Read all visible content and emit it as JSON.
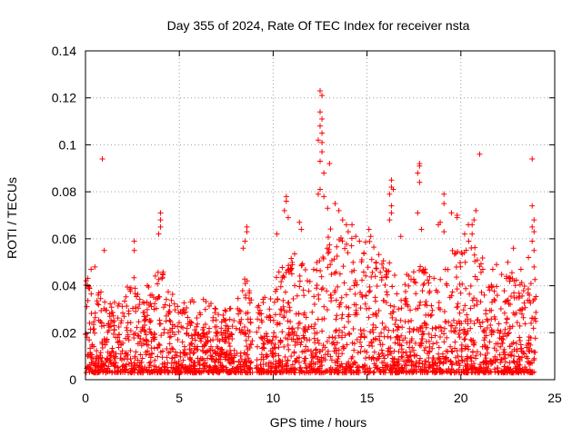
{
  "chart_data": {
    "type": "scatter",
    "title": "Day 355 of 2024, Rate Of TEC Index for receiver nsta",
    "xlabel": "GPS time / hours",
    "ylabel": "ROTI / TECUs",
    "xlim": [
      0,
      25
    ],
    "ylim": [
      0,
      0.14
    ],
    "grid": true,
    "marker": "+",
    "color": "#ff0000",
    "xticks": [
      0,
      5,
      10,
      15,
      20,
      25
    ],
    "yticks": [
      0,
      0.02,
      0.04,
      0.06,
      0.08,
      0.1,
      0.12,
      0.14
    ],
    "xtick_labels": [
      "0",
      "5",
      "10",
      "15",
      "20",
      "25"
    ],
    "ytick_labels": [
      "0",
      "0.02",
      "0.04",
      "0.06",
      "0.08",
      "0.1",
      "0.12",
      "0.14"
    ],
    "data_gap": [
      8.9,
      9.1
    ],
    "series": [
      {
        "name": "ROTI",
        "envelope_hours": [
          0,
          0.5,
          1,
          1.5,
          2,
          2.5,
          3,
          3.5,
          4,
          4.5,
          5,
          5.5,
          6,
          6.5,
          7,
          7.5,
          8,
          8.5,
          9,
          9.5,
          10,
          10.5,
          11,
          11.5,
          12,
          12.5,
          13,
          13.5,
          14,
          14.5,
          15,
          15.5,
          16,
          16.5,
          17,
          17.5,
          18,
          18.5,
          19,
          19.5,
          20,
          20.5,
          21,
          21.5,
          22,
          22.5,
          23,
          23.5,
          24
        ],
        "envelope_upper": [
          0.047,
          0.042,
          0.035,
          0.033,
          0.035,
          0.045,
          0.038,
          0.042,
          0.05,
          0.04,
          0.033,
          0.038,
          0.036,
          0.035,
          0.034,
          0.03,
          0.032,
          0.045,
          0.04,
          0.042,
          0.045,
          0.05,
          0.055,
          0.05,
          0.048,
          0.06,
          0.065,
          0.06,
          0.065,
          0.06,
          0.062,
          0.055,
          0.055,
          0.045,
          0.045,
          0.048,
          0.05,
          0.045,
          0.05,
          0.06,
          0.055,
          0.06,
          0.055,
          0.045,
          0.045,
          0.048,
          0.045,
          0.04,
          0.045
        ],
        "points": [
          [
            0.9,
            0.094
          ],
          [
            4.0,
            0.071
          ],
          [
            4.0,
            0.068
          ],
          [
            4.0,
            0.065
          ],
          [
            3.9,
            0.062
          ],
          [
            2.6,
            0.059
          ],
          [
            2.6,
            0.055
          ],
          [
            1.0,
            0.055
          ],
          [
            0.3,
            0.047
          ],
          [
            0.5,
            0.048
          ],
          [
            8.6,
            0.065
          ],
          [
            8.6,
            0.063
          ],
          [
            8.5,
            0.059
          ],
          [
            8.4,
            0.056
          ],
          [
            12.5,
            0.123
          ],
          [
            12.6,
            0.121
          ],
          [
            12.5,
            0.114
          ],
          [
            12.6,
            0.111
          ],
          [
            12.5,
            0.108
          ],
          [
            12.6,
            0.105
          ],
          [
            12.4,
            0.102
          ],
          [
            12.6,
            0.101
          ],
          [
            12.6,
            0.097
          ],
          [
            12.5,
            0.093
          ],
          [
            12.7,
            0.088
          ],
          [
            13.0,
            0.092
          ],
          [
            12.5,
            0.081
          ],
          [
            12.4,
            0.079
          ],
          [
            12.7,
            0.078
          ],
          [
            10.7,
            0.078
          ],
          [
            10.7,
            0.076
          ],
          [
            13.3,
            0.075
          ],
          [
            13.5,
            0.072
          ],
          [
            10.6,
            0.072
          ],
          [
            10.8,
            0.069
          ],
          [
            11.4,
            0.067
          ],
          [
            11.5,
            0.064
          ],
          [
            10.2,
            0.062
          ],
          [
            13.7,
            0.068
          ],
          [
            14.2,
            0.066
          ],
          [
            14.4,
            0.061
          ],
          [
            14.6,
            0.059
          ],
          [
            14.0,
            0.063
          ],
          [
            13.9,
            0.066
          ],
          [
            12.9,
            0.073
          ],
          [
            16.3,
            0.085
          ],
          [
            16.3,
            0.082
          ],
          [
            16.4,
            0.081
          ],
          [
            16.2,
            0.079
          ],
          [
            16.3,
            0.074
          ],
          [
            16.3,
            0.071
          ],
          [
            16.2,
            0.068
          ],
          [
            17.8,
            0.092
          ],
          [
            17.8,
            0.091
          ],
          [
            17.7,
            0.088
          ],
          [
            17.8,
            0.084
          ],
          [
            17.7,
            0.071
          ],
          [
            15.1,
            0.064
          ],
          [
            15.2,
            0.061
          ],
          [
            16.8,
            0.061
          ],
          [
            17.9,
            0.064
          ],
          [
            18.9,
            0.067
          ],
          [
            18.8,
            0.066
          ],
          [
            19.1,
            0.063
          ],
          [
            19.1,
            0.079
          ],
          [
            19.1,
            0.075
          ],
          [
            19.5,
            0.071
          ],
          [
            19.8,
            0.07
          ],
          [
            19.8,
            0.069
          ],
          [
            20.4,
            0.066
          ],
          [
            20.2,
            0.062
          ],
          [
            21.0,
            0.096
          ],
          [
            20.8,
            0.072
          ],
          [
            20.7,
            0.068
          ],
          [
            20.6,
            0.066
          ],
          [
            20.6,
            0.062
          ],
          [
            23.8,
            0.094
          ],
          [
            23.8,
            0.074
          ],
          [
            23.9,
            0.068
          ],
          [
            23.8,
            0.065
          ],
          [
            23.9,
            0.063
          ],
          [
            23.8,
            0.059
          ],
          [
            23.9,
            0.055
          ],
          [
            23.6,
            0.052
          ],
          [
            22.8,
            0.056
          ],
          [
            23.9,
            0.048
          ],
          [
            23.2,
            0.047
          ],
          [
            22.5,
            0.05
          ],
          [
            21.7,
            0.047
          ],
          [
            21.9,
            0.049
          ]
        ]
      }
    ]
  }
}
